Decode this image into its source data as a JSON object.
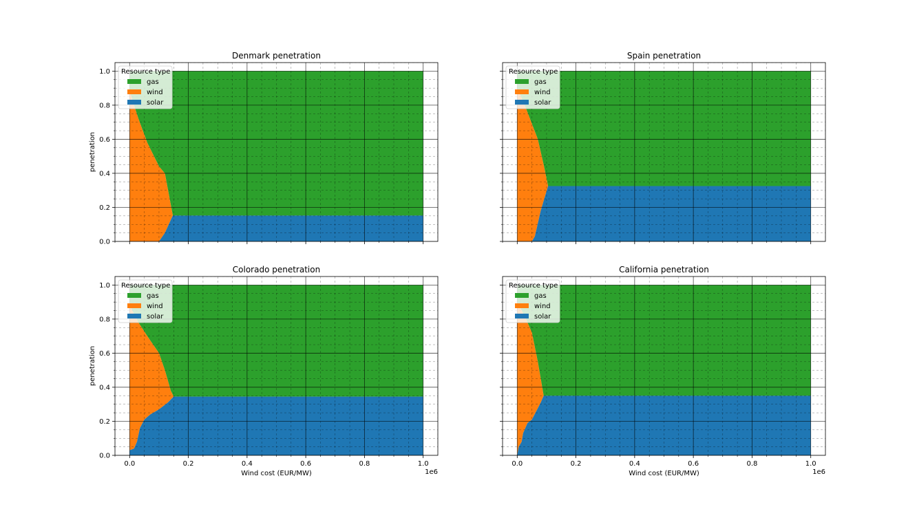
{
  "chart_data": [
    {
      "type": "area",
      "title": "Denmark penetration",
      "xlabel": "",
      "ylabel": "penetration",
      "offset_text": "",
      "xlim": [
        -0.05,
        1.05
      ],
      "ylim": [
        0,
        1.05
      ],
      "xticks": [
        "0.0",
        "0.2",
        "0.4",
        "0.6",
        "0.8",
        "1.0"
      ],
      "yticks": [
        "0.0",
        "0.2",
        "0.4",
        "0.6",
        "0.8",
        "1.0"
      ],
      "legend": {
        "title": "Resource type",
        "items": [
          "gas",
          "wind",
          "solar"
        ],
        "placement": "top-left"
      },
      "grid": true,
      "series": [
        {
          "name": "solar",
          "points": [
            [
              0.0,
              0.0
            ],
            [
              0.1,
              0.0
            ],
            [
              0.12,
              0.05
            ],
            [
              0.147,
              0.152
            ],
            [
              1.0,
              0.152
            ]
          ]
        },
        {
          "name": "wind",
          "points": [
            [
              0.0,
              0.88
            ],
            [
              0.03,
              0.72
            ],
            [
              0.06,
              0.58
            ],
            [
              0.1,
              0.44
            ],
            [
              0.12,
              0.4
            ],
            [
              0.147,
              0.152
            ],
            [
              1.0,
              0.152
            ]
          ]
        }
      ]
    },
    {
      "type": "area",
      "title": "Spain penetration",
      "xlabel": "",
      "ylabel": "",
      "offset_text": "",
      "xlim": [
        -0.05,
        1.05
      ],
      "ylim": [
        0,
        1.05
      ],
      "xticks": [
        "0.0",
        "0.2",
        "0.4",
        "0.6",
        "0.8",
        "1.0"
      ],
      "yticks": [
        "0.0",
        "0.2",
        "0.4",
        "0.6",
        "0.8",
        "1.0"
      ],
      "legend": {
        "title": "Resource type",
        "items": [
          "gas",
          "wind",
          "solar"
        ],
        "placement": "top-left"
      },
      "grid": true,
      "series": [
        {
          "name": "solar",
          "points": [
            [
              0.0,
              0.0
            ],
            [
              0.05,
              0.0
            ],
            [
              0.06,
              0.03
            ],
            [
              0.08,
              0.18
            ],
            [
              0.105,
              0.325
            ],
            [
              1.0,
              0.325
            ]
          ]
        },
        {
          "name": "wind",
          "points": [
            [
              0.0,
              0.9
            ],
            [
              0.03,
              0.78
            ],
            [
              0.07,
              0.6
            ],
            [
              0.09,
              0.45
            ],
            [
              0.105,
              0.325
            ],
            [
              1.0,
              0.325
            ]
          ]
        }
      ]
    },
    {
      "type": "area",
      "title": "Colorado penetration",
      "xlabel": "Wind cost (EUR/MW)",
      "ylabel": "penetration",
      "offset_text": "1e6",
      "xlim": [
        -0.05,
        1.05
      ],
      "ylim": [
        0,
        1.05
      ],
      "xticks": [
        "0.0",
        "0.2",
        "0.4",
        "0.6",
        "0.8",
        "1.0"
      ],
      "yticks": [
        "0.0",
        "0.2",
        "0.4",
        "0.6",
        "0.8",
        "1.0"
      ],
      "legend": {
        "title": "Resource type",
        "items": [
          "gas",
          "wind",
          "solar"
        ],
        "placement": "top-left"
      },
      "grid": true,
      "series": [
        {
          "name": "solar",
          "points": [
            [
              0.0,
              0.03
            ],
            [
              0.015,
              0.04
            ],
            [
              0.025,
              0.08
            ],
            [
              0.035,
              0.16
            ],
            [
              0.05,
              0.21
            ],
            [
              0.07,
              0.24
            ],
            [
              0.1,
              0.27
            ],
            [
              0.13,
              0.31
            ],
            [
              0.15,
              0.345
            ],
            [
              1.0,
              0.345
            ]
          ]
        },
        {
          "name": "wind",
          "points": [
            [
              0.0,
              0.88
            ],
            [
              0.03,
              0.78
            ],
            [
              0.06,
              0.7
            ],
            [
              0.1,
              0.6
            ],
            [
              0.12,
              0.5
            ],
            [
              0.14,
              0.38
            ],
            [
              0.15,
              0.345
            ],
            [
              1.0,
              0.345
            ]
          ]
        }
      ]
    },
    {
      "type": "area",
      "title": "California penetration",
      "xlabel": "Wind cost (EUR/MW)",
      "ylabel": "",
      "offset_text": "1e6",
      "xlim": [
        -0.05,
        1.05
      ],
      "ylim": [
        0,
        1.05
      ],
      "xticks": [
        "0.0",
        "0.2",
        "0.4",
        "0.6",
        "0.8",
        "1.0"
      ],
      "yticks": [
        "0.0",
        "0.2",
        "0.4",
        "0.6",
        "0.8",
        "1.0"
      ],
      "legend": {
        "title": "Resource type",
        "items": [
          "gas",
          "wind",
          "solar"
        ],
        "placement": "top-left"
      },
      "grid": true,
      "series": [
        {
          "name": "solar",
          "points": [
            [
              0.0,
              0.0
            ],
            [
              0.005,
              0.05
            ],
            [
              0.015,
              0.08
            ],
            [
              0.02,
              0.13
            ],
            [
              0.035,
              0.19
            ],
            [
              0.05,
              0.21
            ],
            [
              0.065,
              0.26
            ],
            [
              0.08,
              0.31
            ],
            [
              0.09,
              0.35
            ],
            [
              1.0,
              0.35
            ]
          ]
        },
        {
          "name": "wind",
          "points": [
            [
              0.0,
              0.9
            ],
            [
              0.03,
              0.8
            ],
            [
              0.05,
              0.72
            ],
            [
              0.07,
              0.55
            ],
            [
              0.085,
              0.4
            ],
            [
              0.09,
              0.35
            ],
            [
              1.0,
              0.35
            ]
          ]
        }
      ]
    }
  ],
  "colors": {
    "gas": "#2ca02c",
    "wind": "#ff7f0e",
    "solar": "#1f77b4"
  }
}
